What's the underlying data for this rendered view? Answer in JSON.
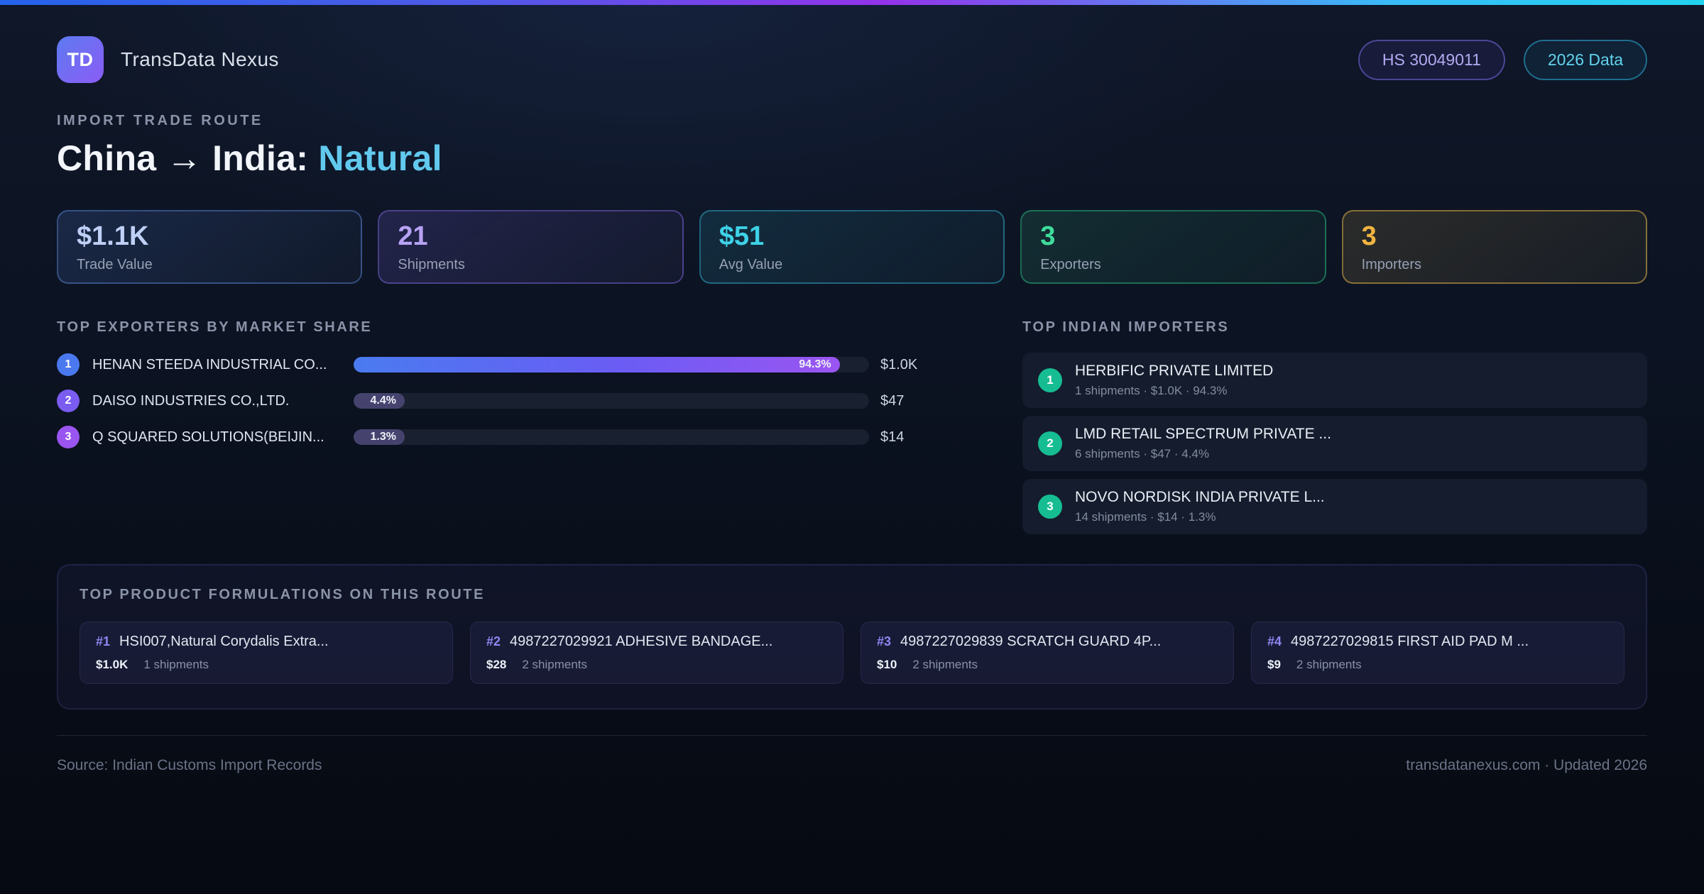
{
  "colors": {
    "accent_blue": "#4a79ef",
    "accent_purple": "#8b5cf6",
    "accent_cyan": "#62c9ee",
    "accent_green": "#3fdc9b",
    "accent_amber": "#f0b441",
    "importer_badge_green": "#16bd92",
    "background_dark": "#0c1322"
  },
  "header": {
    "logo_text": "TD",
    "app_name": "TransData Nexus",
    "hs_badge": "HS 30049011",
    "year_badge": "2026 Data"
  },
  "hero": {
    "eyebrow": "IMPORT TRADE ROUTE",
    "title_main": "China → India:",
    "title_accent": "Natural"
  },
  "stats": [
    {
      "value": "$1.1K",
      "label": "Trade Value"
    },
    {
      "value": "21",
      "label": "Shipments"
    },
    {
      "value": "$51",
      "label": "Avg Value"
    },
    {
      "value": "3",
      "label": "Exporters"
    },
    {
      "value": "3",
      "label": "Importers"
    }
  ],
  "exporters": {
    "heading": "TOP EXPORTERS BY MARKET SHARE",
    "rows": [
      {
        "rank": "1",
        "name": "HENAN STEEDA INDUSTRIAL CO...",
        "share_pct": 94.3,
        "share_label": "94.3%",
        "value": "$1.0K"
      },
      {
        "rank": "2",
        "name": "DAISO INDUSTRIES CO.,LTD.",
        "share_pct": 4.4,
        "share_label": "4.4%",
        "value": "$47"
      },
      {
        "rank": "3",
        "name": "Q SQUARED SOLUTIONS(BEIJIN...",
        "share_pct": 1.3,
        "share_label": "1.3%",
        "value": "$14"
      }
    ]
  },
  "importers": {
    "heading": "TOP INDIAN IMPORTERS",
    "rows": [
      {
        "rank": "1",
        "name": "HERBIFIC PRIVATE LIMITED",
        "meta": "1 shipments · $1.0K · 94.3%"
      },
      {
        "rank": "2",
        "name": "LMD RETAIL SPECTRUM PRIVATE ...",
        "meta": "6 shipments · $47 · 4.4%"
      },
      {
        "rank": "3",
        "name": "NOVO NORDISK INDIA PRIVATE L...",
        "meta": "14 shipments · $14 · 1.3%"
      }
    ]
  },
  "products": {
    "heading": "TOP PRODUCT FORMULATIONS ON THIS ROUTE",
    "cards": [
      {
        "rank": "#1",
        "name": "HSI007,Natural Corydalis Extra...",
        "value": "$1.0K",
        "shipments": "1 shipments"
      },
      {
        "rank": "#2",
        "name": "4987227029921 ADHESIVE BANDAGE...",
        "value": "$28",
        "shipments": "2 shipments"
      },
      {
        "rank": "#3",
        "name": "4987227029839 SCRATCH GUARD 4P...",
        "value": "$10",
        "shipments": "2 shipments"
      },
      {
        "rank": "#4",
        "name": "4987227029815 FIRST AID PAD M ...",
        "value": "$9",
        "shipments": "2 shipments"
      }
    ]
  },
  "footer": {
    "source": "Source: Indian Customs Import Records",
    "site": "transdatanexus.com · Updated 2026"
  }
}
